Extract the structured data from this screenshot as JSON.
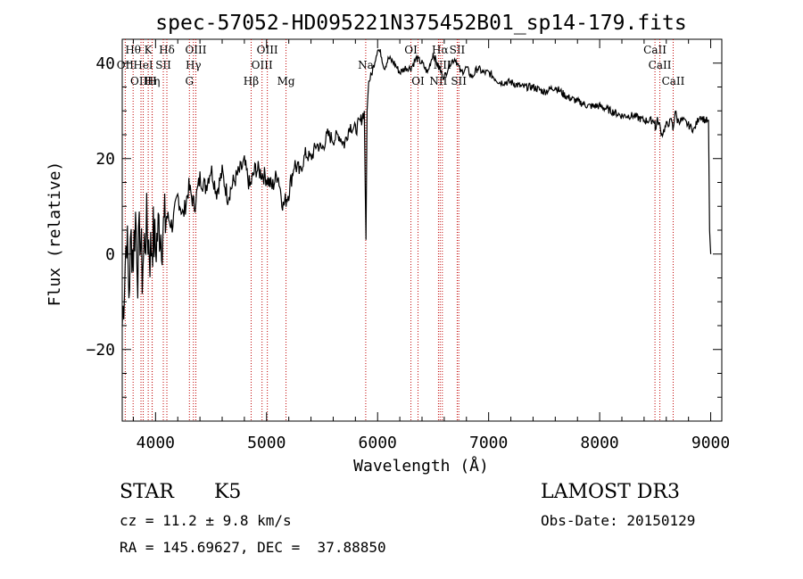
{
  "chart_data": {
    "type": "line",
    "title": "spec-57052-HD095221N375452B01_sp14-179.fits",
    "xlabel": "Wavelength (Å)",
    "ylabel": "Flux (relative)",
    "xlim": [
      3700,
      9100
    ],
    "ylim": [
      -35,
      45
    ],
    "xticks": [
      4000,
      5000,
      6000,
      7000,
      8000,
      9000
    ],
    "yticks": [
      -20,
      0,
      20,
      40
    ],
    "series": [
      {
        "name": "spectrum",
        "x": [
          3700,
          3720,
          3740,
          3760,
          3780,
          3800,
          3820,
          3840,
          3860,
          3880,
          3900,
          3920,
          3950,
          3980,
          4000,
          4030,
          4060,
          4100,
          4150,
          4200,
          4250,
          4300,
          4350,
          4400,
          4450,
          4500,
          4550,
          4600,
          4650,
          4700,
          4750,
          4800,
          4850,
          4900,
          4950,
          5000,
          5050,
          5100,
          5150,
          5200,
          5250,
          5300,
          5350,
          5400,
          5450,
          5500,
          5550,
          5600,
          5650,
          5700,
          5750,
          5800,
          5850,
          5880,
          5895,
          5905,
          5920,
          5950,
          6000,
          6030,
          6060,
          6100,
          6150,
          6200,
          6250,
          6300,
          6350,
          6400,
          6450,
          6500,
          6550,
          6600,
          6650,
          6700,
          6750,
          6800,
          6850,
          6900,
          6950,
          7000,
          7100,
          7200,
          7300,
          7400,
          7500,
          7600,
          7700,
          7800,
          7900,
          8000,
          8100,
          8200,
          8300,
          8400,
          8498,
          8500,
          8520,
          8540,
          8560,
          8600,
          8650,
          8660,
          8680,
          8700,
          8750,
          8800,
          8850,
          8900,
          8950,
          8980,
          8990,
          9000
        ],
        "values": [
          -15,
          -5,
          5,
          -8,
          3,
          0,
          8,
          -3,
          5,
          -4,
          2,
          6,
          0,
          4,
          1,
          6,
          4,
          8,
          6,
          12,
          8,
          14,
          10,
          16,
          14,
          18,
          13,
          17,
          12,
          15,
          17,
          19,
          14,
          18,
          17,
          16,
          14,
          17,
          10,
          13,
          19,
          17,
          21,
          20,
          23,
          22,
          25,
          24,
          25,
          23,
          27,
          26,
          28,
          30,
          3,
          30,
          36,
          38,
          43,
          42,
          39,
          41,
          40,
          38,
          39,
          39,
          41,
          40,
          38,
          42,
          39,
          37,
          40,
          41,
          38,
          39,
          37,
          39,
          38,
          38,
          36,
          36,
          35,
          35,
          34,
          35,
          33,
          32,
          31,
          31,
          30,
          29,
          29,
          28,
          28,
          26,
          28,
          27,
          25,
          27,
          28,
          26,
          30,
          28,
          28,
          27,
          26,
          29,
          28,
          28,
          5,
          0
        ]
      }
    ],
    "emission_lines": [
      {
        "label": "OII",
        "x": 3727,
        "row": 1
      },
      {
        "label": "Hθ",
        "x": 3798,
        "row": 0
      },
      {
        "label": "OIII",
        "x": 3869,
        "row": 2
      },
      {
        "label": "HeI",
        "x": 3889,
        "row": 1
      },
      {
        "label": "K",
        "x": 3934,
        "row": 0
      },
      {
        "label": "Hη",
        "x": 3970,
        "row": 2
      },
      {
        "label": "H",
        "x": 3969,
        "row": 2
      },
      {
        "label": "SII",
        "x": 4070,
        "row": 1
      },
      {
        "label": "Hδ",
        "x": 4102,
        "row": 0
      },
      {
        "label": "G",
        "x": 4305,
        "row": 2
      },
      {
        "label": "OIII",
        "x": 4363,
        "row": 0
      },
      {
        "label": "Hγ",
        "x": 4341,
        "row": 1
      },
      {
        "label": "Hβ",
        "x": 4861,
        "row": 2
      },
      {
        "label": "OIII",
        "x": 4959,
        "row": 1
      },
      {
        "label": "OIII",
        "x": 5007,
        "row": 0
      },
      {
        "label": "Mg",
        "x": 5175,
        "row": 2
      },
      {
        "label": "Na",
        "x": 5893,
        "row": 1
      },
      {
        "label": "OI",
        "x": 6300,
        "row": 0
      },
      {
        "label": "OI",
        "x": 6364,
        "row": 2
      },
      {
        "label": "NII",
        "x": 6548,
        "row": 2
      },
      {
        "label": "Hα",
        "x": 6563,
        "row": 0
      },
      {
        "label": "NII",
        "x": 6583,
        "row": 1
      },
      {
        "label": "SII",
        "x": 6717,
        "row": 0
      },
      {
        "label": "SII",
        "x": 6731,
        "row": 2
      },
      {
        "label": "CaII",
        "x": 8498,
        "row": 0
      },
      {
        "label": "CaII",
        "x": 8542,
        "row": 1
      },
      {
        "label": "CaII",
        "x": 8662,
        "row": 2
      }
    ]
  },
  "info": {
    "class": "STAR",
    "subclass": "K5",
    "survey": "LAMOST DR3",
    "redshift": "cz = 11.2 ± 9.8 km/s",
    "obs_date": "Obs-Date: 20150129",
    "coords": "RA = 145.69627, DEC =  37.88850"
  }
}
